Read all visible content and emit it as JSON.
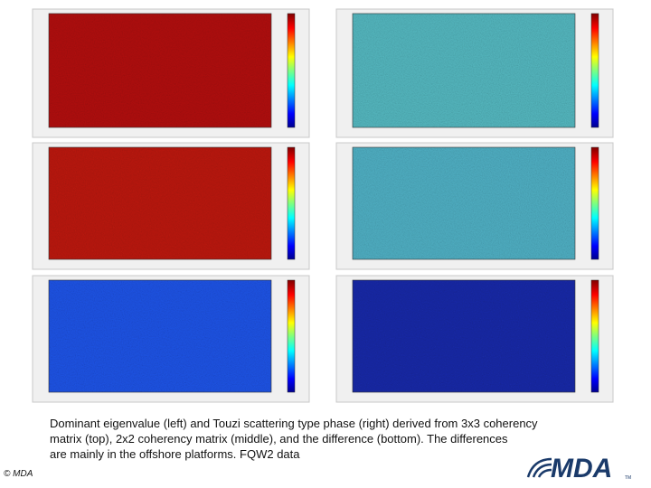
{
  "caption": [
    "Dominant eigenvalue (left) and Touzi scattering type phase (right) derived from 3x3 coherency",
    "matrix (top), 2x2 coherency matrix (middle), and the difference (bottom).  The differences",
    "are mainly in the offshore platforms.  FQW2 data"
  ],
  "copyright": "© MDA",
  "logo": "MDA"
}
